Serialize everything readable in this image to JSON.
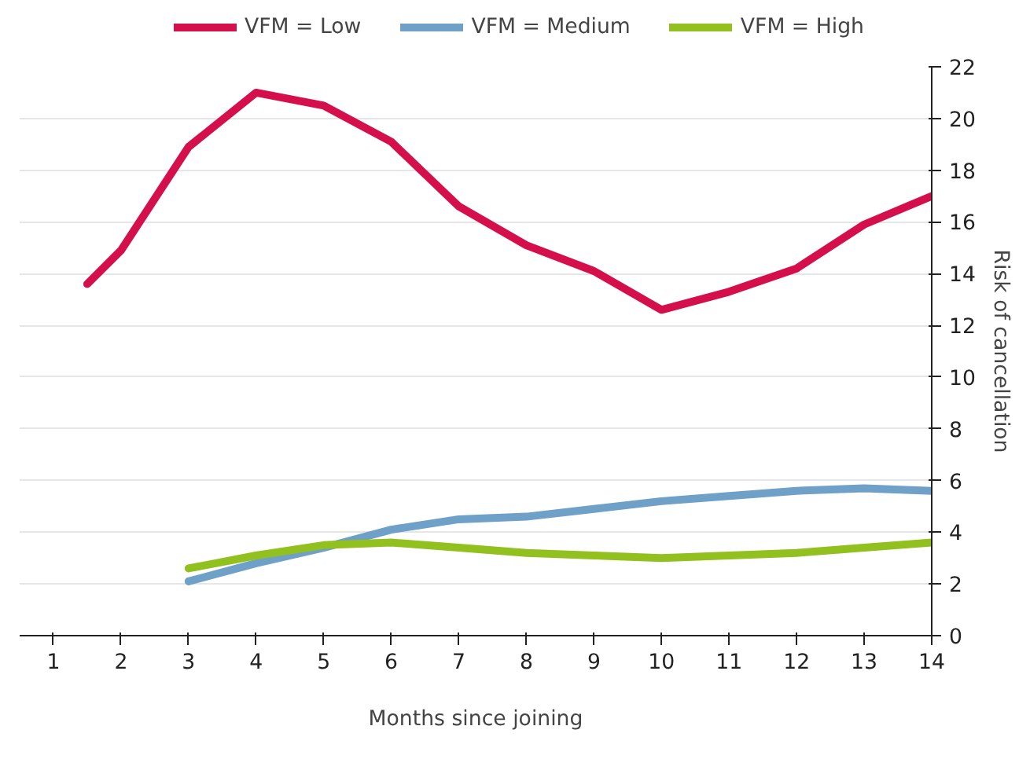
{
  "chart_data": {
    "type": "line",
    "xlabel": "Months since joining",
    "ylabel": "Risk of cancellation",
    "xlim": [
      0.5,
      14
    ],
    "xticks": [
      1,
      2,
      3,
      4,
      5,
      6,
      7,
      8,
      9,
      10,
      11,
      12,
      13,
      14
    ],
    "ylim": [
      0,
      22
    ],
    "yticks": [
      0,
      2,
      4,
      6,
      8,
      10,
      12,
      14,
      16,
      18,
      20,
      22
    ],
    "grid": "y",
    "legend": "top",
    "marker": "none",
    "line_style": "solid",
    "series": [
      {
        "name": "VFM = Low",
        "color": "#d50f4c",
        "x": [
          1.5,
          2,
          3,
          4,
          5,
          6,
          7,
          8,
          9,
          10,
          11,
          12,
          13,
          14
        ],
        "values": [
          13.6,
          14.9,
          18.9,
          21.0,
          20.5,
          19.1,
          16.6,
          15.1,
          14.1,
          12.6,
          13.3,
          14.2,
          15.9,
          17.0
        ]
      },
      {
        "name": "VFM = Medium",
        "color": "#6fa0c8",
        "x": [
          3,
          4,
          5,
          6,
          7,
          8,
          9,
          10,
          11,
          12,
          13,
          14
        ],
        "values": [
          2.1,
          2.8,
          3.4,
          4.1,
          4.5,
          4.6,
          4.9,
          5.2,
          5.4,
          5.6,
          5.7,
          5.6
        ]
      },
      {
        "name": "VFM = High",
        "color": "#92c01f",
        "x": [
          3,
          4,
          5,
          6,
          7,
          8,
          9,
          10,
          11,
          12,
          13,
          14
        ],
        "values": [
          2.6,
          3.1,
          3.5,
          3.6,
          3.4,
          3.2,
          3.1,
          3.0,
          3.1,
          3.2,
          3.4,
          3.6
        ]
      }
    ]
  }
}
